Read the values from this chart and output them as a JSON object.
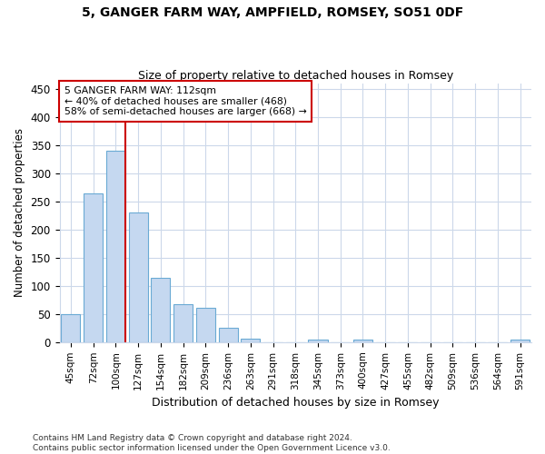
{
  "title1": "5, GANGER FARM WAY, AMPFIELD, ROMSEY, SO51 0DF",
  "title2": "Size of property relative to detached houses in Romsey",
  "xlabel": "Distribution of detached houses by size in Romsey",
  "ylabel": "Number of detached properties",
  "categories": [
    "45sqm",
    "72sqm",
    "100sqm",
    "127sqm",
    "154sqm",
    "182sqm",
    "209sqm",
    "236sqm",
    "263sqm",
    "291sqm",
    "318sqm",
    "345sqm",
    "373sqm",
    "400sqm",
    "427sqm",
    "455sqm",
    "482sqm",
    "509sqm",
    "536sqm",
    "564sqm",
    "591sqm"
  ],
  "bar_heights": [
    50,
    265,
    340,
    230,
    115,
    68,
    61,
    25,
    6,
    0,
    0,
    5,
    0,
    4,
    0,
    0,
    0,
    0,
    0,
    0,
    4
  ],
  "bar_color": "#c5d8f0",
  "bar_edgecolor": "#6aaad4",
  "vline_index": 2,
  "annotation_line1": "5 GANGER FARM WAY: 112sqm",
  "annotation_line2": "← 40% of detached houses are smaller (468)",
  "annotation_line3": "58% of semi-detached houses are larger (668) →",
  "annotation_box_color": "#ffffff",
  "annotation_box_edgecolor": "#cc0000",
  "vline_color": "#cc0000",
  "footer1": "Contains HM Land Registry data © Crown copyright and database right 2024.",
  "footer2": "Contains public sector information licensed under the Open Government Licence v3.0.",
  "ylim": [
    0,
    460
  ],
  "yticks": [
    0,
    50,
    100,
    150,
    200,
    250,
    300,
    350,
    400,
    450
  ],
  "bg_color": "#ffffff",
  "grid_color": "#ccd8ea"
}
